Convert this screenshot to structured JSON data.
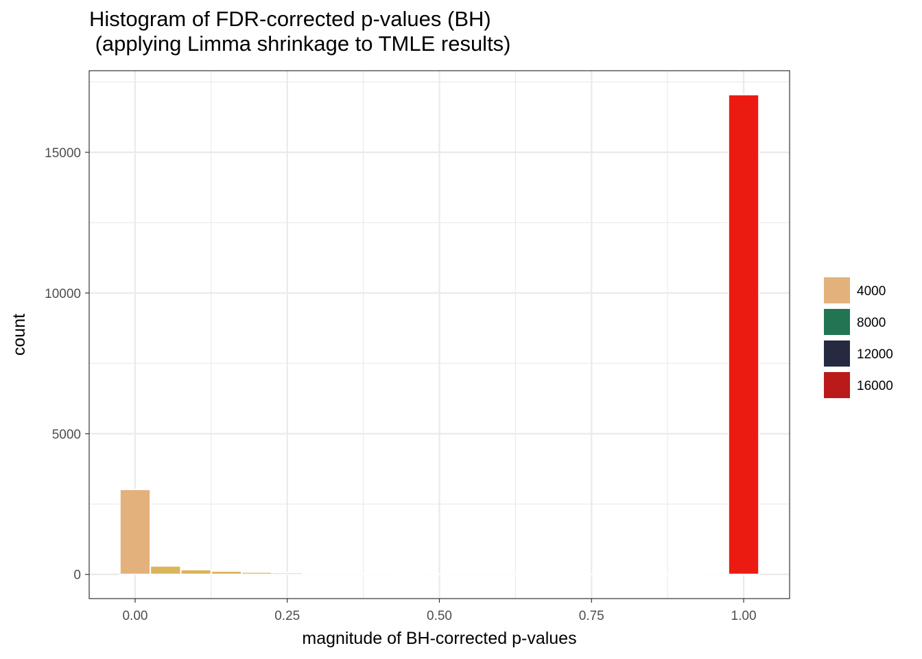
{
  "chart_data": {
    "type": "bar",
    "title_line1": "Histogram of FDR-corrected p-values (BH)",
    "title_line2": " (applying Limma shrinkage to TMLE results)",
    "xlabel": "magnitude of BH-corrected p-values",
    "ylabel": "count",
    "xlim": [
      -0.0755,
      1.0755
    ],
    "ylim": [
      -860,
      17900
    ],
    "x_ticks": [
      0,
      0.25,
      0.5,
      0.75,
      1
    ],
    "x_tick_labels": [
      "0.00",
      "0.25",
      "0.50",
      "0.75",
      "1.00"
    ],
    "y_ticks": [
      0,
      5000,
      10000,
      15000
    ],
    "y_tick_labels": [
      "0",
      "5000",
      "10000",
      "15000"
    ],
    "grid": true,
    "bin_width": 0.05,
    "bins": [
      {
        "x": 0.0,
        "count": 3020,
        "color": "#e3b17c"
      },
      {
        "x": 0.05,
        "count": 300,
        "color": "#dcb45a"
      },
      {
        "x": 0.1,
        "count": 170,
        "color": "#dcb45a"
      },
      {
        "x": 0.15,
        "count": 120,
        "color": "#dcb45a"
      },
      {
        "x": 0.2,
        "count": 80,
        "color": "#dcb45a"
      },
      {
        "x": 0.25,
        "count": 60,
        "color": "#dcb45a"
      },
      {
        "x": 0.3,
        "count": 45,
        "color": "#dcb45a"
      },
      {
        "x": 0.35,
        "count": 30,
        "color": "#dcb45a"
      },
      {
        "x": 0.4,
        "count": 25,
        "color": "#dcb45a"
      },
      {
        "x": 0.45,
        "count": 10,
        "color": "#dcb45a"
      },
      {
        "x": 0.5,
        "count": 15,
        "color": "#dcb45a"
      },
      {
        "x": 0.55,
        "count": 15,
        "color": "#dcb45a"
      },
      {
        "x": 0.6,
        "count": 15,
        "color": "#dcb45a"
      },
      {
        "x": 0.65,
        "count": 10,
        "color": "#dcb45a"
      },
      {
        "x": 0.7,
        "count": 8,
        "color": "#dcb45a"
      },
      {
        "x": 0.75,
        "count": 8,
        "color": "#dcb45a"
      },
      {
        "x": 0.8,
        "count": 5,
        "color": "#dcb45a"
      },
      {
        "x": 0.85,
        "count": 5,
        "color": "#dcb45a"
      },
      {
        "x": 0.9,
        "count": 5,
        "color": "#dcb45a"
      },
      {
        "x": 0.95,
        "count": 20,
        "color": "#dcb45a"
      },
      {
        "x": 1.0,
        "count": 17050,
        "color": "#ec1b11"
      }
    ],
    "legend": {
      "placement": "right",
      "entries": [
        {
          "label": "4000",
          "color": "#e3b17c"
        },
        {
          "label": "8000",
          "color": "#217552"
        },
        {
          "label": "12000",
          "color": "#252a40"
        },
        {
          "label": "16000",
          "color": "#bb1a1a"
        }
      ]
    }
  }
}
